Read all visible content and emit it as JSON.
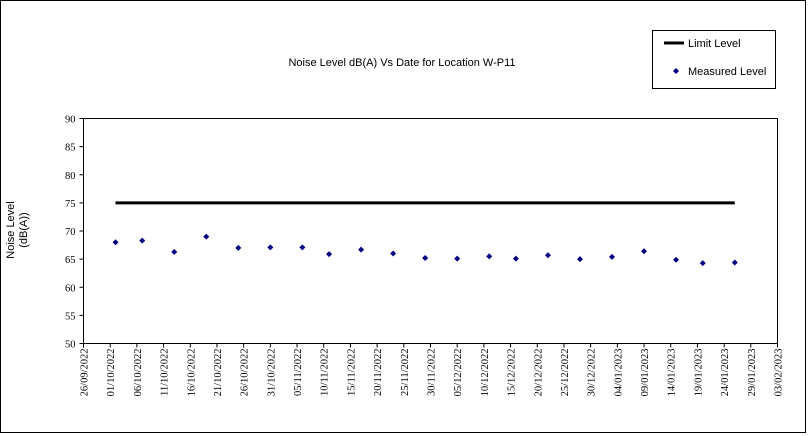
{
  "chart_data": {
    "type": "scatter",
    "title": "Noise Level dB(A) Vs Date for Location W-P11",
    "ylabel": [
      "Noise Level",
      "(dB(A))"
    ],
    "ylim": [
      50,
      90
    ],
    "yticks": [
      50,
      55,
      60,
      65,
      70,
      75,
      80,
      85,
      90
    ],
    "xlim": [
      "26/09/2022",
      "03/02/2023"
    ],
    "xticks": [
      "26/09/2022",
      "01/10/2022",
      "06/10/2022",
      "11/10/2022",
      "16/10/2022",
      "21/10/2022",
      "26/10/2022",
      "31/10/2022",
      "05/11/2022",
      "10/11/2022",
      "15/11/2022",
      "20/11/2022",
      "25/11/2022",
      "30/11/2022",
      "05/12/2022",
      "10/12/2022",
      "15/12/2022",
      "20/12/2022",
      "25/12/2022",
      "30/12/2022",
      "04/01/2023",
      "09/01/2023",
      "14/01/2023",
      "19/01/2023",
      "24/01/2023",
      "29/01/2023",
      "03/02/2023"
    ],
    "x": [
      "02/10/2022",
      "07/10/2022",
      "13/10/2022",
      "19/10/2022",
      "25/10/2022",
      "31/10/2022",
      "06/11/2022",
      "11/11/2022",
      "17/11/2022",
      "23/11/2022",
      "29/11/2022",
      "05/12/2022",
      "11/12/2022",
      "16/12/2022",
      "22/12/2022",
      "28/12/2022",
      "03/01/2023",
      "09/01/2023",
      "15/01/2023",
      "20/01/2023",
      "26/01/2023"
    ],
    "series": [
      {
        "name": "Limit Level",
        "color": "#000000",
        "style": "line",
        "values": [
          75,
          75,
          75,
          75,
          75,
          75,
          75,
          75,
          75,
          75,
          75,
          75,
          75,
          75,
          75,
          75,
          75,
          75,
          75,
          75,
          75
        ]
      },
      {
        "name": "Measured Level",
        "color": "#000080",
        "style": "marker",
        "values": [
          68,
          68.3,
          66.3,
          69,
          67,
          67.1,
          67.1,
          65.9,
          66.7,
          66,
          65.2,
          65.1,
          65.5,
          65.1,
          65.7,
          65,
          65.4,
          66.4,
          64.9,
          64.3,
          64.4
        ]
      }
    ]
  }
}
